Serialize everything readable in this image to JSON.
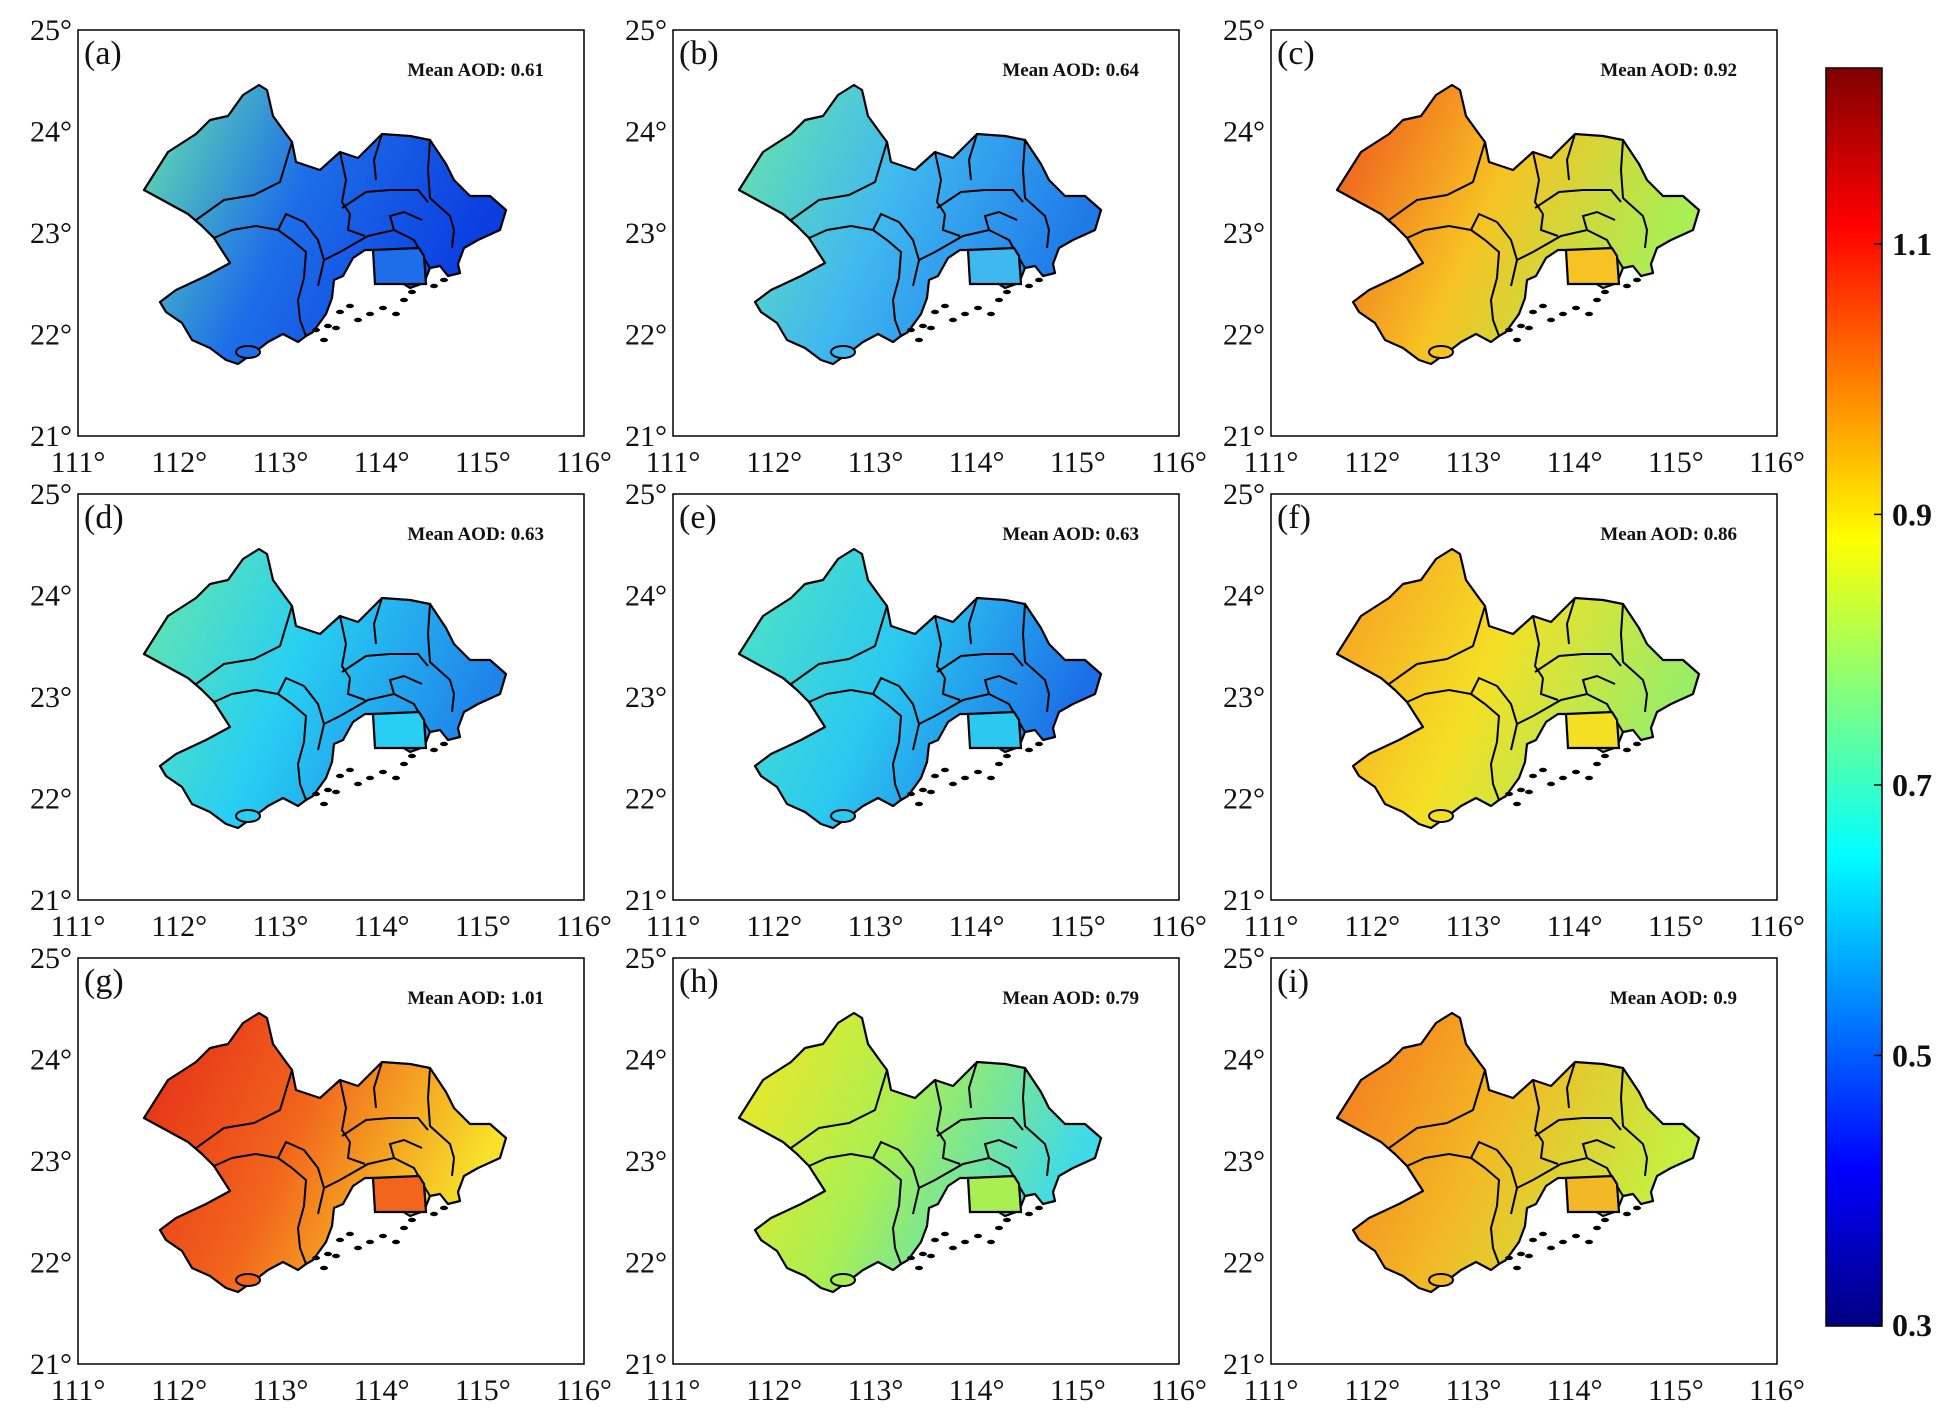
{
  "axis": {
    "lon_ticks": [
      "111°",
      "112°",
      "113°",
      "114°",
      "115°",
      "116°"
    ],
    "lat_ticks": [
      "21°",
      "22°",
      "23°",
      "24°",
      "25°"
    ]
  },
  "panels": [
    {
      "label": "(a)",
      "mean_text": "Mean AOD: 0.61",
      "mean": 0.61,
      "gradient": [
        "#68e6ab",
        "#1d6ee8",
        "#0b3de0"
      ]
    },
    {
      "label": "(b)",
      "mean_text": "Mean AOD: 0.64",
      "mean": 0.64,
      "gradient": [
        "#6ae6a9",
        "#3fb8f0",
        "#1f7ae8"
      ]
    },
    {
      "label": "(c)",
      "mean_text": "Mean AOD: 0.92",
      "mean": 0.92,
      "gradient": [
        "#ee4e1e",
        "#f7c223",
        "#a8ef55"
      ]
    },
    {
      "label": "(d)",
      "mean_text": "Mean AOD: 0.63",
      "mean": 0.63,
      "gradient": [
        "#6ae8a8",
        "#28cff2",
        "#1f84ea"
      ]
    },
    {
      "label": "(e)",
      "mean_text": "Mean AOD: 0.63",
      "mean": 0.63,
      "gradient": [
        "#52e4c0",
        "#2bc9f0",
        "#1c6fe6"
      ]
    },
    {
      "label": "(f)",
      "mean_text": "Mean AOD: 0.86",
      "mean": 0.86,
      "gradient": [
        "#f69a22",
        "#f5df25",
        "#9bed66"
      ]
    },
    {
      "label": "(g)",
      "mean_text": "Mean AOD: 1.01",
      "mean": 1.01,
      "gradient": [
        "#e32a19",
        "#f2651c",
        "#f7e12a"
      ]
    },
    {
      "label": "(h)",
      "mean_text": "Mean AOD: 0.79",
      "mean": 0.79,
      "gradient": [
        "#f7e622",
        "#a9ef52",
        "#3edaea"
      ]
    },
    {
      "label": "(i)",
      "mean_text": "Mean AOD: 0.9",
      "mean": 0.9,
      "gradient": [
        "#f4751f",
        "#f3b825",
        "#c5f041"
      ]
    }
  ],
  "colorbar": {
    "colors": [
      "#000080",
      "#0000ff",
      "#0080ff",
      "#00ffff",
      "#80ff80",
      "#ffff00",
      "#ff8000",
      "#ff0000",
      "#800000"
    ],
    "ticks": [
      "0.3",
      "0.5",
      "0.7",
      "0.9",
      "1.1"
    ]
  },
  "colors": {
    "outline": "#000000",
    "background": "#ffffff"
  }
}
